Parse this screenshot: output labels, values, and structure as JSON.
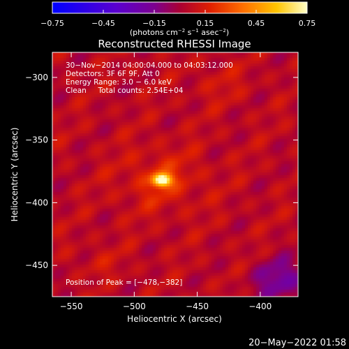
{
  "chart_data": {
    "type": "heatmap",
    "title": "Reconstructed RHESSI Image",
    "xlabel": "Heliocentric X (arcsec)",
    "ylabel": "Heliocentric Y (arcsec)",
    "xlim": [
      -565,
      -370
    ],
    "ylim": [
      -475,
      -280
    ],
    "x_ticks": [
      -550,
      -500,
      -450,
      -400
    ],
    "y_ticks": [
      -300,
      -350,
      -400,
      -450
    ],
    "x_tick_labels": [
      "−550",
      "−500",
      "−450",
      "−400"
    ],
    "y_tick_labels": [
      "−300",
      "−350",
      "−400",
      "−450"
    ],
    "colorbar": {
      "range": [
        -0.75,
        0.75
      ],
      "ticks": [
        -0.75,
        -0.45,
        -0.15,
        0.15,
        0.45,
        0.75
      ],
      "tick_labels": [
        "−0.75",
        "−0.45",
        "−0.15",
        "0.15",
        "0.45",
        "0.75"
      ],
      "unit_main": "(photons cm",
      "unit_exp1": "−2",
      "unit_mid1": " s",
      "unit_exp2": "−1",
      "unit_mid2": " asec",
      "unit_exp3": "−2",
      "unit_end": ")"
    },
    "info_lines": [
      "30−Nov−2014 04:00:04.000 to 04:03:12.000",
      "Detectors: 3F 6F 9F, Att 0",
      "Energy Range: 3.0 − 6.0 keV",
      "Clean     Total counts: 2.54E+04"
    ],
    "peak_label": "Position of Peak = [−478,−382]",
    "peak": {
      "x": -478,
      "y": -382,
      "value": 0.75
    },
    "dark_region": {
      "x": -383,
      "y": -462,
      "value": -0.25
    }
  },
  "footer_timestamp": "20−May−2022 01:58"
}
